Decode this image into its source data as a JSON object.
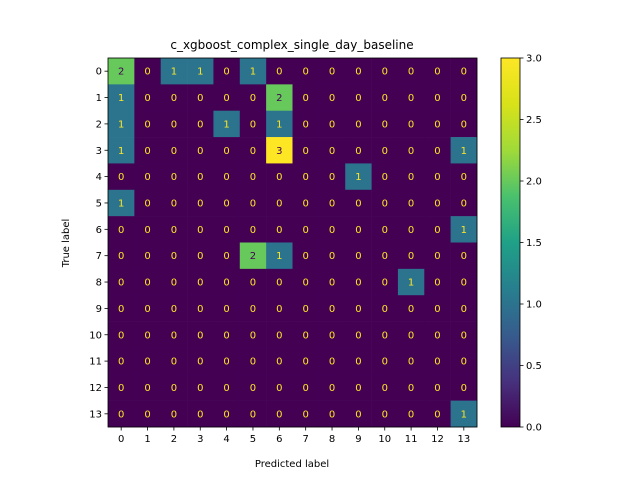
{
  "chart_data": {
    "type": "heatmap",
    "title": "c_xgboost_complex_single_day_baseline",
    "xlabel": "Predicted label",
    "ylabel": "True label",
    "x_categories": [
      "0",
      "1",
      "2",
      "3",
      "4",
      "5",
      "6",
      "7",
      "8",
      "9",
      "10",
      "11",
      "12",
      "13"
    ],
    "y_categories": [
      "0",
      "1",
      "2",
      "3",
      "4",
      "5",
      "6",
      "7",
      "8",
      "9",
      "10",
      "11",
      "12",
      "13"
    ],
    "values": [
      [
        2,
        0,
        1,
        1,
        0,
        1,
        0,
        0,
        0,
        0,
        0,
        0,
        0,
        0
      ],
      [
        1,
        0,
        0,
        0,
        0,
        0,
        2,
        0,
        0,
        0,
        0,
        0,
        0,
        0
      ],
      [
        1,
        0,
        0,
        0,
        1,
        0,
        1,
        0,
        0,
        0,
        0,
        0,
        0,
        0
      ],
      [
        1,
        0,
        0,
        0,
        0,
        0,
        3,
        0,
        0,
        0,
        0,
        0,
        0,
        1
      ],
      [
        0,
        0,
        0,
        0,
        0,
        0,
        0,
        0,
        0,
        1,
        0,
        0,
        0,
        0
      ],
      [
        1,
        0,
        0,
        0,
        0,
        0,
        0,
        0,
        0,
        0,
        0,
        0,
        0,
        0
      ],
      [
        0,
        0,
        0,
        0,
        0,
        0,
        0,
        0,
        0,
        0,
        0,
        0,
        0,
        1
      ],
      [
        0,
        0,
        0,
        0,
        0,
        2,
        1,
        0,
        0,
        0,
        0,
        0,
        0,
        0
      ],
      [
        0,
        0,
        0,
        0,
        0,
        0,
        0,
        0,
        0,
        0,
        0,
        1,
        0,
        0
      ],
      [
        0,
        0,
        0,
        0,
        0,
        0,
        0,
        0,
        0,
        0,
        0,
        0,
        0,
        0
      ],
      [
        0,
        0,
        0,
        0,
        0,
        0,
        0,
        0,
        0,
        0,
        0,
        0,
        0,
        0
      ],
      [
        0,
        0,
        0,
        0,
        0,
        0,
        0,
        0,
        0,
        0,
        0,
        0,
        0,
        0
      ],
      [
        0,
        0,
        0,
        0,
        0,
        0,
        0,
        0,
        0,
        0,
        0,
        0,
        0,
        0
      ],
      [
        0,
        0,
        0,
        0,
        0,
        0,
        0,
        0,
        0,
        0,
        0,
        0,
        0,
        1
      ]
    ],
    "value_range": [
      0,
      3
    ],
    "colormap": "viridis",
    "colorbar_ticks": [
      "0.0",
      "0.5",
      "1.0",
      "1.5",
      "2.0",
      "2.5",
      "3.0"
    ],
    "colors": {
      "low": "#440154",
      "one": "#31688e",
      "two": "#35b779",
      "high": "#fde725",
      "text_on_dark": "#fde725",
      "text_on_light": "#440154"
    }
  }
}
